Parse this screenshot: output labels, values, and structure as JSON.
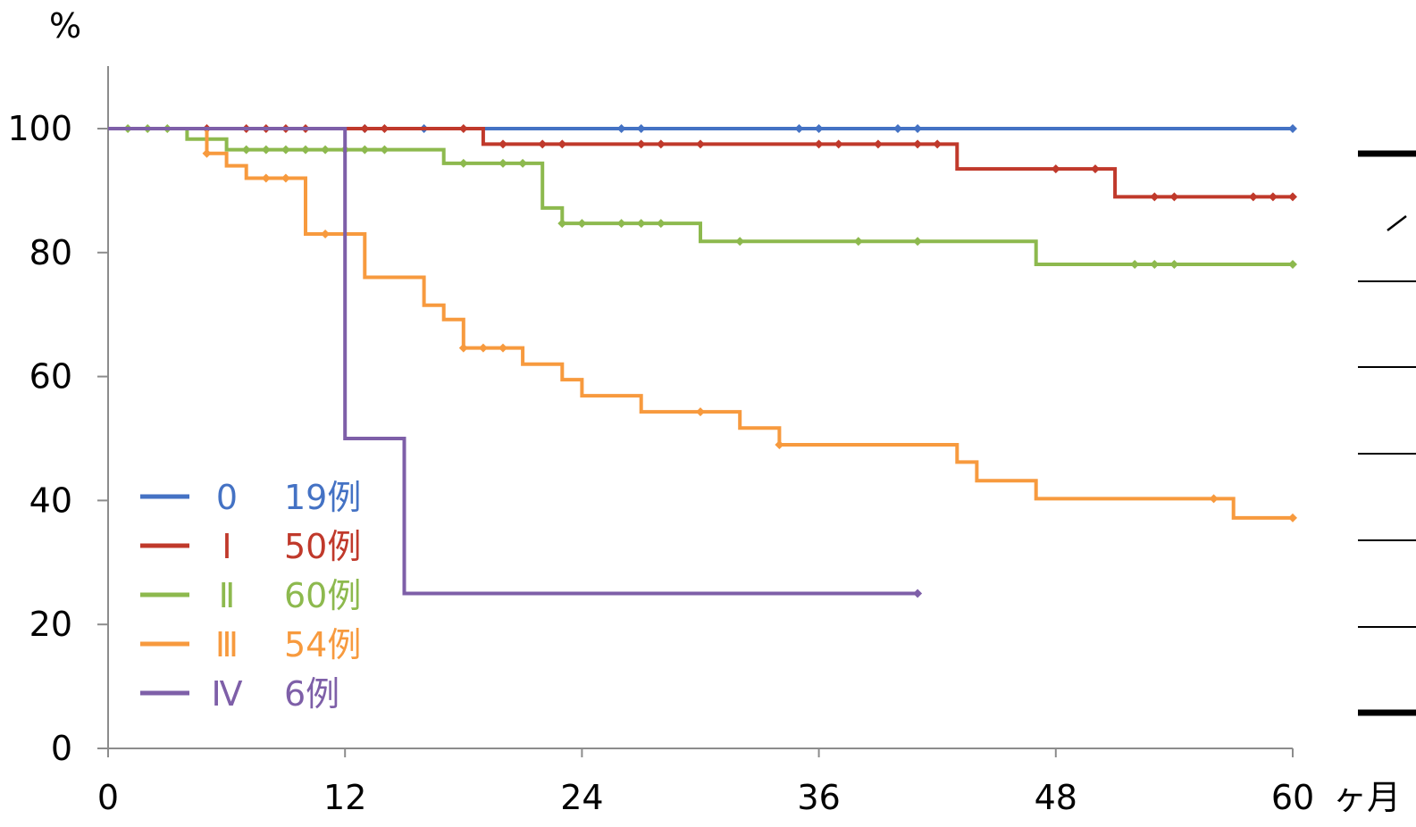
{
  "chart_data": {
    "type": "line",
    "step": true,
    "y_unit": "%",
    "x_unit": "ヶ月",
    "xlim": [
      0,
      60
    ],
    "ylim": [
      0,
      100
    ],
    "x_ticks": [
      "0",
      "12",
      "24",
      "36",
      "48",
      "60"
    ],
    "y_ticks": [
      "0",
      "20",
      "40",
      "60",
      "80",
      "100"
    ],
    "grid": false,
    "legend_position": "bottom-left",
    "series": [
      {
        "name": "0",
        "count_label": "19例",
        "color": "#4472C4",
        "steps": [
          [
            0,
            100
          ],
          [
            60,
            100
          ]
        ],
        "censored": [
          [
            13,
            100
          ],
          [
            16,
            100
          ],
          [
            26,
            100
          ],
          [
            27,
            100
          ],
          [
            35,
            100
          ],
          [
            36,
            100
          ],
          [
            40,
            100
          ],
          [
            41,
            100
          ],
          [
            60,
            100
          ]
        ]
      },
      {
        "name": "Ⅰ",
        "count_label": "50例",
        "color": "#C0392B",
        "steps": [
          [
            0,
            100
          ],
          [
            19,
            97.5
          ],
          [
            43,
            93.5
          ],
          [
            51,
            89
          ],
          [
            60,
            89
          ]
        ],
        "censored": [
          [
            5,
            100
          ],
          [
            7,
            100
          ],
          [
            8,
            100
          ],
          [
            9,
            100
          ],
          [
            10,
            100
          ],
          [
            13,
            100
          ],
          [
            14,
            100
          ],
          [
            18,
            100
          ],
          [
            20,
            97.5
          ],
          [
            22,
            97.5
          ],
          [
            23,
            97.5
          ],
          [
            27,
            97.5
          ],
          [
            28,
            97.5
          ],
          [
            30,
            97.5
          ],
          [
            36,
            97.5
          ],
          [
            37,
            97.5
          ],
          [
            39,
            97.5
          ],
          [
            41,
            97.5
          ],
          [
            42,
            97.5
          ],
          [
            48,
            93.5
          ],
          [
            50,
            93.5
          ],
          [
            53,
            89
          ],
          [
            54,
            89
          ],
          [
            58,
            89
          ],
          [
            59,
            89
          ],
          [
            60,
            89
          ]
        ]
      },
      {
        "name": "Ⅱ",
        "count_label": "60例",
        "color": "#8DB94E",
        "steps": [
          [
            0,
            100
          ],
          [
            4,
            98.3
          ],
          [
            6,
            96.6
          ],
          [
            17,
            94.4
          ],
          [
            22,
            87.2
          ],
          [
            23,
            84.7
          ],
          [
            30,
            81.8
          ],
          [
            47,
            78.1
          ],
          [
            60,
            78.1
          ]
        ],
        "censored": [
          [
            1,
            100
          ],
          [
            2,
            100
          ],
          [
            3,
            100
          ],
          [
            7,
            96.6
          ],
          [
            8,
            96.6
          ],
          [
            9,
            96.6
          ],
          [
            10,
            96.6
          ],
          [
            11,
            96.6
          ],
          [
            12,
            96.6
          ],
          [
            13,
            96.6
          ],
          [
            14,
            96.6
          ],
          [
            18,
            94.4
          ],
          [
            20,
            94.4
          ],
          [
            21,
            94.4
          ],
          [
            23,
            84.7
          ],
          [
            24,
            84.7
          ],
          [
            26,
            84.7
          ],
          [
            27,
            84.7
          ],
          [
            28,
            84.7
          ],
          [
            32,
            81.8
          ],
          [
            38,
            81.8
          ],
          [
            41,
            81.8
          ],
          [
            52,
            78.1
          ],
          [
            53,
            78.1
          ],
          [
            54,
            78.1
          ],
          [
            60,
            78.1
          ]
        ]
      },
      {
        "name": "Ⅲ",
        "count_label": "54例",
        "color": "#F79A3E",
        "steps": [
          [
            0,
            100
          ],
          [
            5,
            96
          ],
          [
            6,
            94
          ],
          [
            7,
            92
          ],
          [
            10,
            83
          ],
          [
            13,
            76
          ],
          [
            16,
            71.5
          ],
          [
            17,
            69.2
          ],
          [
            18,
            64.6
          ],
          [
            21,
            62
          ],
          [
            23,
            59.5
          ],
          [
            24,
            56.9
          ],
          [
            27,
            54.3
          ],
          [
            32,
            51.7
          ],
          [
            34,
            49
          ],
          [
            43,
            46.2
          ],
          [
            44,
            43.2
          ],
          [
            47,
            40.3
          ],
          [
            57,
            37.2
          ],
          [
            60,
            37.2
          ]
        ],
        "censored": [
          [
            5,
            96
          ],
          [
            8,
            92
          ],
          [
            9,
            92
          ],
          [
            11,
            83
          ],
          [
            18,
            64.6
          ],
          [
            19,
            64.6
          ],
          [
            20,
            64.6
          ],
          [
            30,
            54.3
          ],
          [
            34,
            49
          ],
          [
            56,
            40.3
          ],
          [
            60,
            37.2
          ]
        ]
      },
      {
        "name": "Ⅳ",
        "count_label": "6例",
        "color": "#7E5FA8",
        "steps": [
          [
            0,
            100
          ],
          [
            12,
            50
          ],
          [
            15,
            25
          ],
          [
            41,
            25
          ]
        ],
        "censored": [
          [
            41,
            25
          ]
        ]
      }
    ]
  }
}
